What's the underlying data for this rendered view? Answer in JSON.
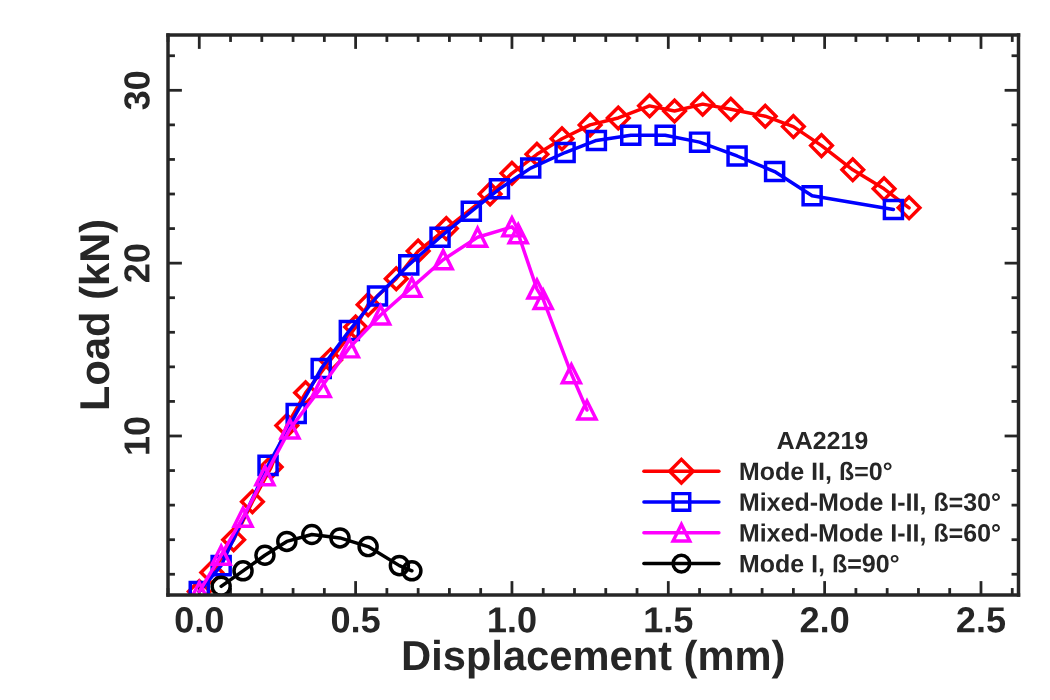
{
  "chart_data": {
    "type": "line",
    "xlabel": "Displacement (mm)",
    "ylabel": "Load (kN)",
    "legend_title": "AA2219",
    "legend": "bottom right",
    "grid": false,
    "xlim": [
      -0.1,
      2.62
    ],
    "xticks": [
      {
        "value": 0,
        "label": "0.0"
      },
      0.5,
      {
        "value": 1,
        "label": "1.0"
      },
      1.5,
      {
        "value": 2,
        "label": "2.0"
      },
      2.5
    ],
    "ylim": [
      0.8,
      33.2
    ],
    "yticks": [
      10,
      20,
      30
    ],
    "series": [
      {
        "name": "Mode II, ß=0°",
        "color": "#ff0000",
        "marker": "diamond",
        "x": [
          0.0,
          0.04,
          0.11,
          0.17,
          0.23,
          0.28,
          0.34,
          0.42,
          0.5,
          0.54,
          0.63,
          0.7,
          0.79,
          0.93,
          1.0,
          1.08,
          1.16,
          1.25,
          1.34,
          1.44,
          1.52,
          1.61,
          1.7,
          1.81,
          1.9,
          1.99,
          2.09,
          2.19,
          2.27
        ],
        "values": [
          1.0,
          2.1,
          4.0,
          6.2,
          8.2,
          10.6,
          12.5,
          14.4,
          16.3,
          17.6,
          19.1,
          20.7,
          22.0,
          24.0,
          25.2,
          26.3,
          27.2,
          28.0,
          28.4,
          29.1,
          28.8,
          29.2,
          28.9,
          28.5,
          27.9,
          26.8,
          25.4,
          24.3,
          23.2
        ]
      },
      {
        "name": "Mixed-Mode I-II, ß=30°",
        "color": "#0000ff",
        "marker": "square",
        "x": [
          0.0,
          0.07,
          0.22,
          0.31,
          0.39,
          0.48,
          0.57,
          0.67,
          0.77,
          0.87,
          0.96,
          1.06,
          1.17,
          1.27,
          1.38,
          1.49,
          1.6,
          1.72,
          1.84,
          1.96,
          2.22
        ],
        "values": [
          1.0,
          2.5,
          8.3,
          11.3,
          13.9,
          16.1,
          18.1,
          19.9,
          21.5,
          23.0,
          24.3,
          25.5,
          26.4,
          27.1,
          27.4,
          27.4,
          27.0,
          26.2,
          25.3,
          23.9,
          23.1
        ]
      },
      {
        "name": "Mixed-Mode I-II, ß=60°",
        "color": "#ff00ff",
        "marker": "triangle",
        "x": [
          0.0,
          0.07,
          0.14,
          0.21,
          0.29,
          0.39,
          0.48,
          0.58,
          0.68,
          0.78,
          0.89,
          1.0,
          1.02,
          1.08,
          1.1,
          1.19,
          1.24
        ],
        "values": [
          1.0,
          3.1,
          5.3,
          7.7,
          10.4,
          12.8,
          15.1,
          17.0,
          18.6,
          20.2,
          21.5,
          22.1,
          21.7,
          18.5,
          17.9,
          13.6,
          11.5
        ]
      },
      {
        "name": "Mode I, ß=90°",
        "color": "#000000",
        "marker": "circle",
        "x": [
          0.07,
          0.14,
          0.21,
          0.28,
          0.36,
          0.45,
          0.54,
          0.64,
          0.68
        ],
        "values": [
          1.3,
          2.2,
          3.1,
          3.9,
          4.3,
          4.1,
          3.6,
          2.5,
          2.2
        ]
      }
    ]
  }
}
